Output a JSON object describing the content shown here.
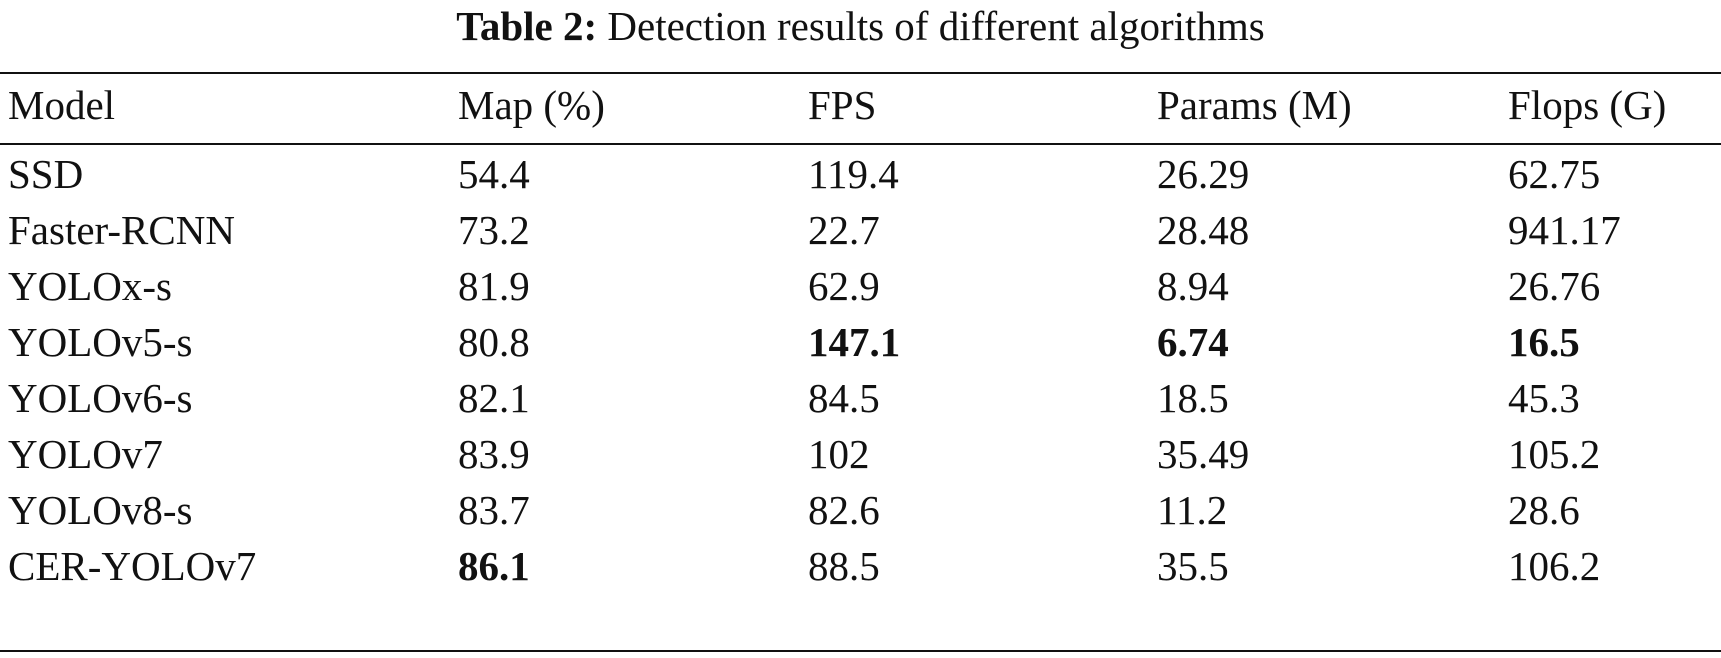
{
  "caption": {
    "label": "Table 2:",
    "text": "Detection results of different algorithms"
  },
  "table": {
    "headers": [
      "Model",
      "Map (%)",
      "FPS",
      "Params (M)",
      "Flops (G)"
    ],
    "rows": [
      {
        "model": "SSD",
        "map": "54.4",
        "fps": "119.4",
        "params": "26.29",
        "flops": "62.75"
      },
      {
        "model": "Faster-RCNN",
        "map": "73.2",
        "fps": "22.7",
        "params": "28.48",
        "flops": "941.17"
      },
      {
        "model": "YOLOx-s",
        "map": "81.9",
        "fps": "62.9",
        "params": "8.94",
        "flops": "26.76"
      },
      {
        "model": "YOLOv5-s",
        "map": "80.8",
        "fps": "147.1",
        "params": "6.74",
        "flops": "16.5"
      },
      {
        "model": "YOLOv6-s",
        "map": "82.1",
        "fps": "84.5",
        "params": "18.5",
        "flops": "45.3"
      },
      {
        "model": "YOLOv7",
        "map": "83.9",
        "fps": "102",
        "params": "35.49",
        "flops": "105.2"
      },
      {
        "model": "YOLOv8-s",
        "map": "83.7",
        "fps": "82.6",
        "params": "11.2",
        "flops": "28.6"
      },
      {
        "model": "CER-YOLOv7",
        "map": "86.1",
        "fps": "88.5",
        "params": "35.5",
        "flops": "106.2"
      }
    ],
    "bold_cells": [
      {
        "row": 3,
        "col": "fps"
      },
      {
        "row": 3,
        "col": "params"
      },
      {
        "row": 3,
        "col": "flops"
      },
      {
        "row": 7,
        "col": "map"
      }
    ]
  }
}
